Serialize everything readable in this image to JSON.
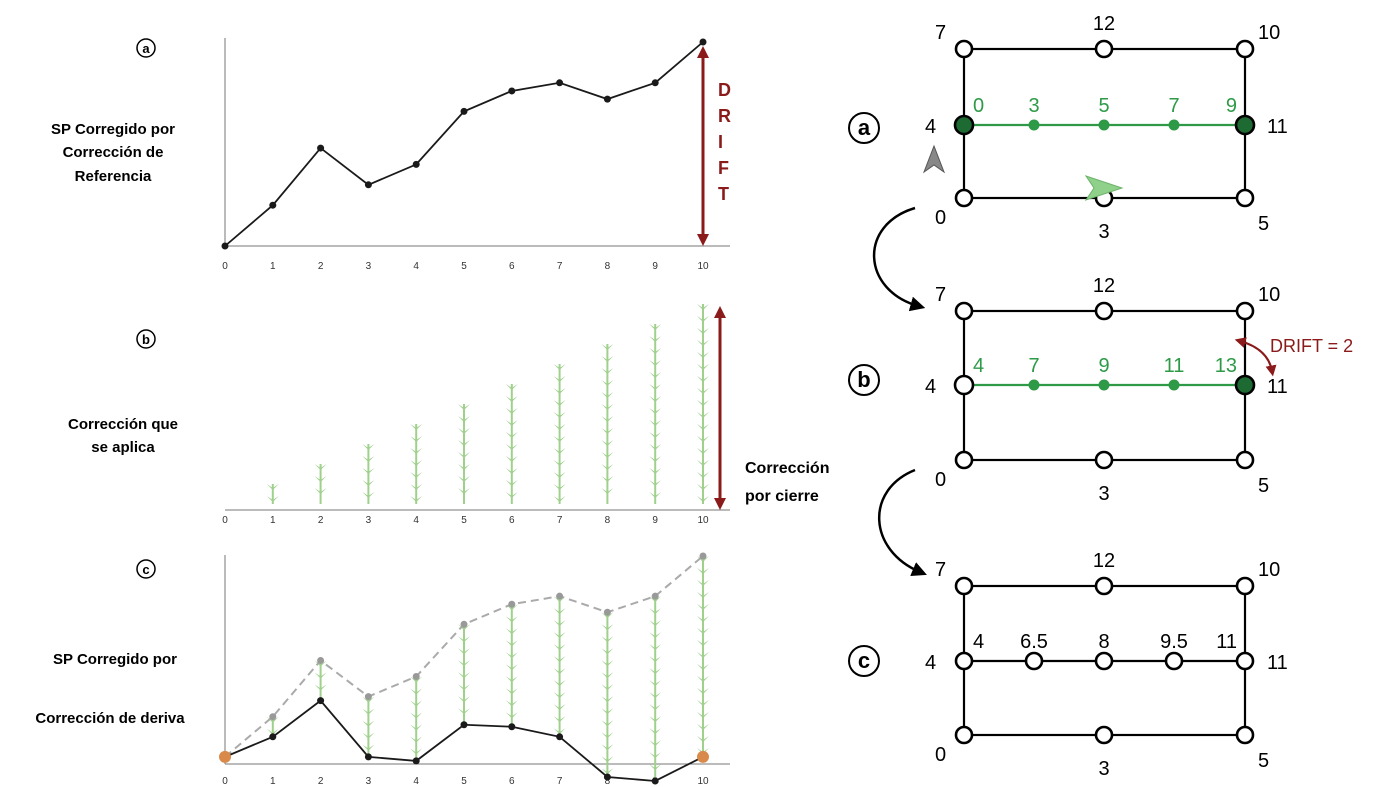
{
  "left_panel": {
    "labels": {
      "a_line1": "SP Corregido por",
      "a_line2": "Corrección de",
      "a_line3": "Referencia",
      "b_line1": "Corrección que",
      "b_line2": "se  aplica",
      "c_line1": "SP Corregido por",
      "c_line2": "Corrección de deriva",
      "closure_line1": "Corrección",
      "closure_line2": "por cierre"
    },
    "panel_letters": [
      "a",
      "b",
      "c"
    ],
    "drift_letters": [
      "D",
      "R",
      "I",
      "F",
      "T"
    ]
  },
  "chart_data": [
    {
      "type": "line",
      "panel": "a",
      "x": [
        0,
        1,
        2,
        3,
        4,
        5,
        6,
        7,
        8,
        9,
        10
      ],
      "tick_labels": [
        "0",
        "1",
        "2",
        "3",
        "4",
        "5",
        "6",
        "7",
        "8",
        "9",
        "10"
      ],
      "series": [
        {
          "values": [
            0,
            2,
            4.8,
            3,
            4,
            6.6,
            7.6,
            8,
            7.2,
            8,
            10
          ]
        }
      ],
      "annotation": "DRIFT",
      "ylim": [
        0,
        10
      ]
    },
    {
      "type": "bar",
      "panel": "b",
      "x": [
        0,
        1,
        2,
        3,
        4,
        5,
        6,
        7,
        8,
        9,
        10
      ],
      "tick_labels": [
        "0",
        "1",
        "2",
        "3",
        "4",
        "5",
        "6",
        "7",
        "8",
        "9",
        "10"
      ],
      "correction_arrows": [
        0,
        1,
        2,
        3,
        4,
        5,
        6,
        7,
        8,
        9,
        10
      ],
      "annotation": "Corrección por cierre",
      "ylim": [
        0,
        10
      ]
    },
    {
      "type": "line",
      "panel": "c",
      "x": [
        0,
        1,
        2,
        3,
        4,
        5,
        6,
        7,
        8,
        9,
        10
      ],
      "tick_labels": [
        "0",
        "1",
        "2",
        "3",
        "4",
        "5",
        "6",
        "7",
        "8",
        "9",
        "10"
      ],
      "series": [
        {
          "style": "dashed-gray",
          "values": [
            0,
            2,
            4.8,
            3,
            4,
            6.6,
            7.6,
            8,
            7.2,
            8,
            10
          ]
        },
        {
          "style": "solid-black",
          "values": [
            0,
            1,
            2.8,
            0,
            -0.2,
            1.6,
            1.5,
            1,
            -1,
            -1.2,
            0
          ]
        }
      ],
      "ylim": [
        -1.4,
        10
      ]
    }
  ],
  "right_panel": {
    "colors": {
      "green": "#2e9a48",
      "green_fill": "#2e9a48",
      "dark_green": "#1d6b33",
      "drift_red": "#8b1a1a",
      "black": "#000000"
    },
    "diagrams": [
      {
        "letter": "a",
        "outer_labels": {
          "tl": "7",
          "tm": "12",
          "tr": "10",
          "ml": "4",
          "mr": "11",
          "bl": "0",
          "bm": "3",
          "br": "5"
        },
        "mid_labels": [
          "0",
          "3",
          "5",
          "7",
          "9"
        ],
        "mid_style": "green"
      },
      {
        "letter": "b",
        "outer_labels": {
          "tl": "7",
          "tm": "12",
          "tr": "10",
          "ml": "4",
          "mr": "11",
          "bl": "0",
          "bm": "3",
          "br": "5"
        },
        "mid_labels": [
          "4",
          "7",
          "9",
          "11",
          "13"
        ],
        "mid_style": "green",
        "drift_label": "DRIFT = 2"
      },
      {
        "letter": "c",
        "outer_labels": {
          "tl": "7",
          "tm": "12",
          "tr": "10",
          "ml": "4",
          "mr": "11",
          "bl": "0",
          "bm": "3",
          "br": "5"
        },
        "mid_labels": [
          "4",
          "6.5",
          "8",
          "9.5",
          "11"
        ],
        "mid_style": "black"
      }
    ]
  }
}
